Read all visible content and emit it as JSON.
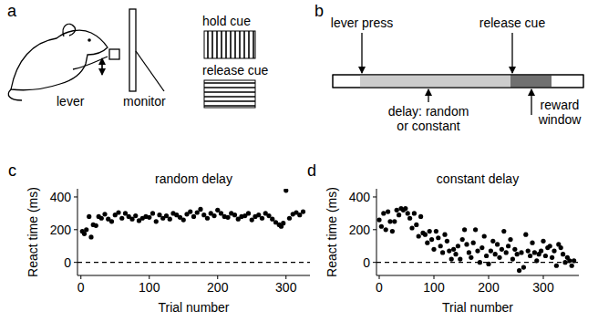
{
  "diagram_a": {
    "panel_label": "a",
    "lever": "lever",
    "monitor": "monitor",
    "hold_cue": "hold cue",
    "release_cue": "release cue"
  },
  "diagram_b": {
    "panel_label": "b",
    "lever_press": "lever press",
    "release_cue": "release cue",
    "delay": "delay: random or constant",
    "reward_window": "reward window"
  },
  "chart_data": [
    {
      "type": "scatter",
      "panel_label": "c",
      "title": "random delay",
      "x_label": "Trial number",
      "y_label": "React time (ms)",
      "color": "#000000",
      "marker": "circle",
      "x": [
        2,
        5,
        8,
        12,
        15,
        18,
        22,
        26,
        30,
        35,
        40,
        45,
        50,
        55,
        60,
        65,
        70,
        75,
        80,
        85,
        90,
        95,
        100,
        105,
        110,
        115,
        120,
        125,
        130,
        135,
        140,
        145,
        150,
        155,
        160,
        165,
        170,
        175,
        180,
        185,
        190,
        195,
        200,
        205,
        210,
        215,
        220,
        225,
        230,
        235,
        240,
        245,
        250,
        255,
        260,
        265,
        270,
        275,
        280,
        285,
        290,
        293,
        296,
        300,
        305,
        310,
        315,
        320,
        325
      ],
      "values": [
        190,
        175,
        200,
        280,
        155,
        230,
        225,
        280,
        270,
        295,
        265,
        250,
        290,
        305,
        270,
        300,
        280,
        265,
        285,
        255,
        270,
        280,
        275,
        300,
        250,
        290,
        270,
        285,
        265,
        300,
        290,
        275,
        260,
        295,
        310,
        280,
        305,
        325,
        290,
        270,
        300,
        285,
        320,
        300,
        280,
        275,
        300,
        290,
        265,
        280,
        285,
        300,
        260,
        280,
        290,
        270,
        300,
        285,
        265,
        245,
        230,
        220,
        240,
        440,
        270,
        295,
        305,
        290,
        310
      ],
      "xlim": [
        -5,
        335
      ],
      "xticks": [
        0,
        100,
        200,
        300
      ],
      "ylim": [
        -80,
        450
      ],
      "yticks": [
        0,
        200,
        400
      ],
      "hline": 0
    },
    {
      "type": "scatter",
      "panel_label": "d",
      "title": "constant delay",
      "x_label": "Trial number",
      "y_label": "React time (ms)",
      "color": "#000000",
      "marker": "circle",
      "x": [
        0,
        4,
        8,
        12,
        16,
        20,
        24,
        28,
        32,
        36,
        40,
        44,
        48,
        52,
        56,
        60,
        64,
        68,
        72,
        76,
        80,
        84,
        88,
        92,
        96,
        100,
        104,
        108,
        112,
        116,
        120,
        124,
        128,
        132,
        136,
        140,
        144,
        148,
        152,
        156,
        160,
        164,
        168,
        172,
        176,
        180,
        184,
        188,
        192,
        196,
        200,
        204,
        208,
        212,
        216,
        220,
        224,
        228,
        232,
        236,
        240,
        244,
        248,
        252,
        256,
        260,
        264,
        268,
        272,
        276,
        280,
        284,
        288,
        292,
        296,
        300,
        304,
        308,
        312,
        316,
        320,
        324,
        328,
        332,
        336,
        340,
        344,
        348,
        352,
        356
      ],
      "values": [
        260,
        220,
        300,
        200,
        310,
        250,
        190,
        250,
        320,
        290,
        330,
        320,
        330,
        300,
        270,
        210,
        300,
        230,
        160,
        280,
        180,
        170,
        120,
        190,
        140,
        80,
        190,
        150,
        100,
        60,
        170,
        130,
        70,
        20,
        80,
        50,
        100,
        20,
        140,
        200,
        110,
        60,
        30,
        120,
        200,
        70,
        0,
        90,
        160,
        40,
        -10,
        70,
        130,
        50,
        110,
        30,
        80,
        190,
        60,
        100,
        140,
        20,
        80,
        50,
        -50,
        60,
        -30,
        170,
        70,
        40,
        120,
        60,
        10,
        50,
        70,
        130,
        40,
        90,
        100,
        30,
        70,
        -20,
        110,
        90,
        50,
        0,
        30,
        10,
        -20,
        10
      ],
      "xlim": [
        -5,
        365
      ],
      "xticks": [
        0,
        100,
        200,
        300
      ],
      "ylim": [
        -80,
        450
      ],
      "yticks": [
        0,
        200,
        400
      ],
      "hline": 0
    }
  ]
}
